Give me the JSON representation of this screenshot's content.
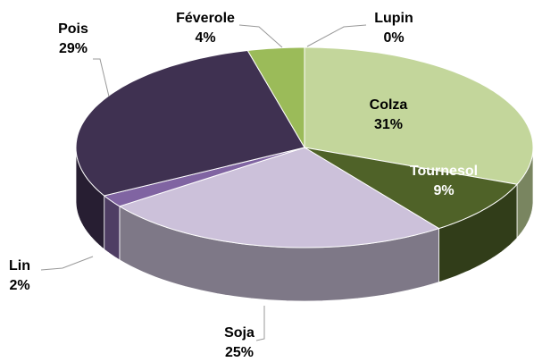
{
  "chart_data": {
    "type": "pie",
    "categories": [
      "Colza",
      "Tournesol",
      "Soja",
      "Lin",
      "Pois",
      "Féverole",
      "Lupin"
    ],
    "values": [
      31,
      9,
      25,
      2,
      29,
      4,
      0
    ],
    "value_labels": [
      "31%",
      "9%",
      "25%",
      "2%",
      "29%",
      "4%",
      "0%"
    ],
    "colors": [
      "#c3d69b",
      "#4f6228",
      "#ccc1da",
      "#8064a2",
      "#3f3151",
      "#9bbb59",
      "#77933c"
    ]
  }
}
